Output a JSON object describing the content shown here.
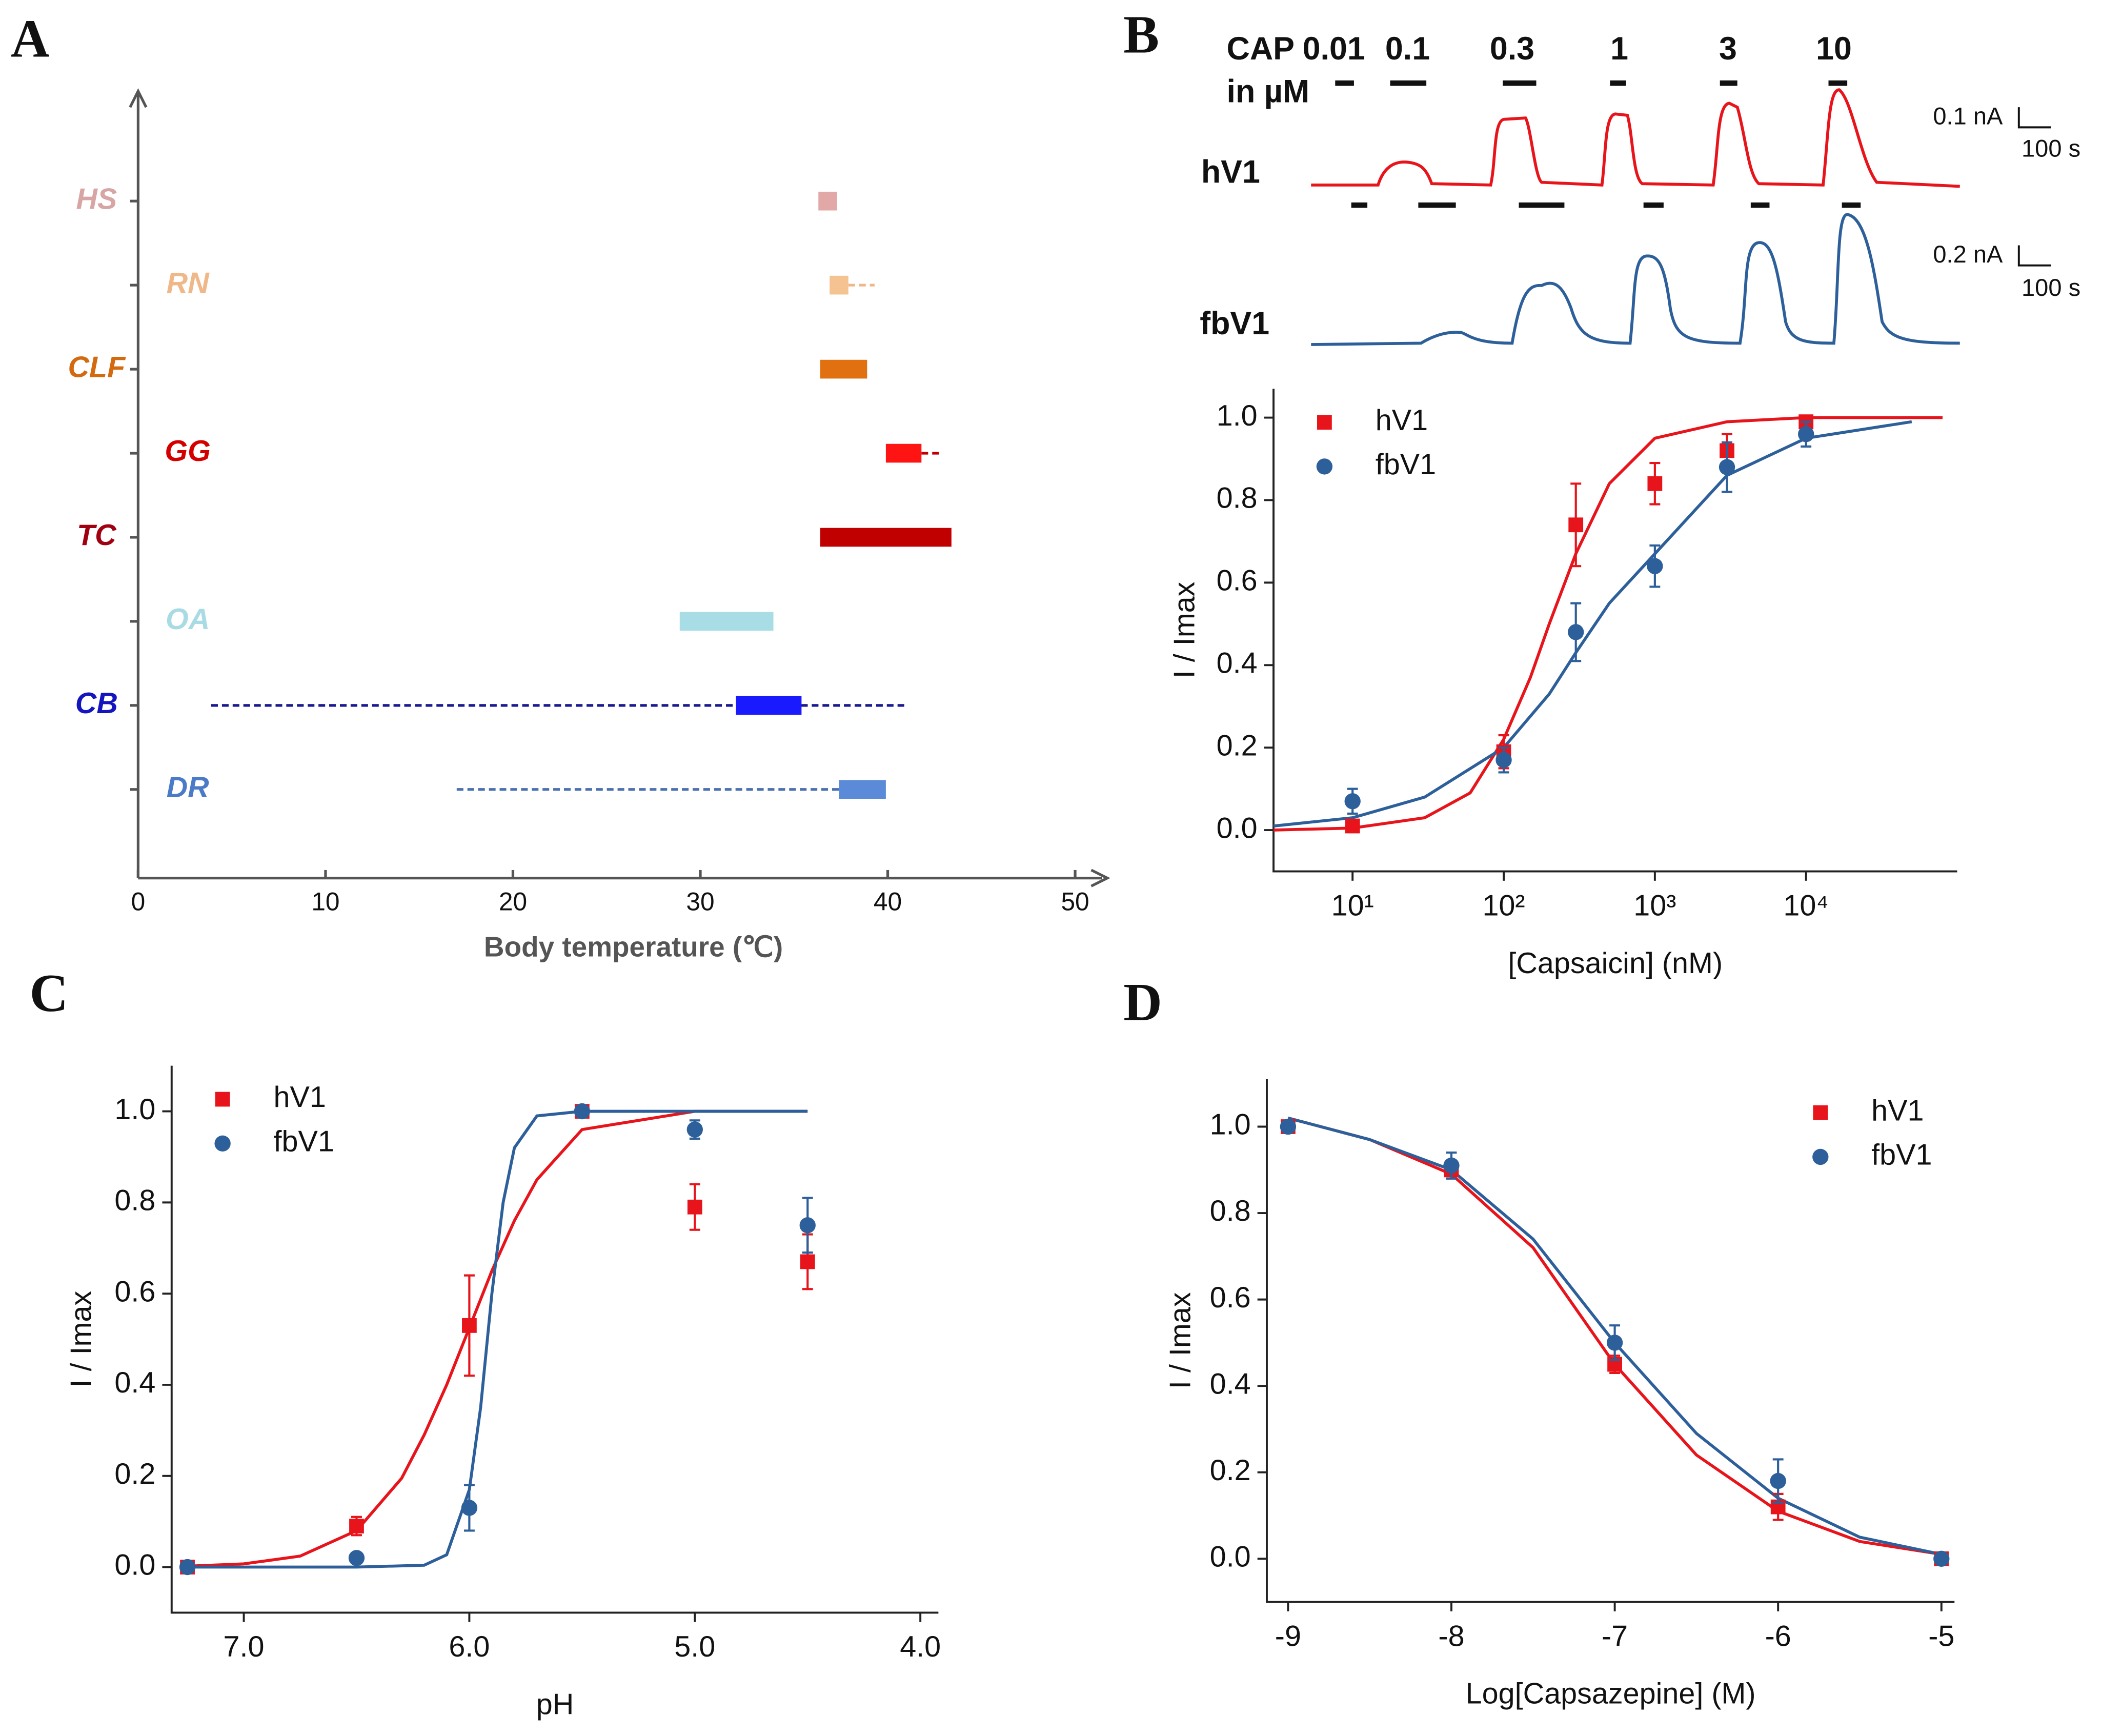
{
  "chart_data": [
    {
      "type": "range",
      "panel": "A",
      "x_label": "Body temperature (℃)",
      "categories": [
        "HS",
        "RN",
        "CLF",
        "GG",
        "TC",
        "OA",
        "CB",
        "DR"
      ],
      "low": [
        36.3,
        36.9,
        36.4,
        39.9,
        36.4,
        28.9,
        31.9,
        37.4
      ],
      "high": [
        37.3,
        37.9,
        38.9,
        41.8,
        43.4,
        33.9,
        35.4,
        39.9
      ],
      "dash_low": [
        null,
        37.9,
        null,
        41.8,
        null,
        null,
        3.9,
        17.0
      ],
      "dash_high": [
        null,
        39.3,
        null,
        42.9,
        null,
        null,
        40.9,
        37.4
      ],
      "label_colors": [
        "#d8a5a5",
        "#f0b888",
        "#d46a10",
        "#d40000",
        "#a00010",
        "#a8dbe4",
        "#1515c0",
        "#4a7ac8"
      ],
      "colors": [
        "#e2a8a8",
        "#f5c292",
        "#e07010",
        "#ff1414",
        "#c00000",
        "#a8dde6",
        "#1a1aff",
        "#5a8ad8"
      ],
      "dash_colors": [
        null,
        "#f0b888",
        null,
        "#c00000",
        null,
        null,
        "#1a1a90",
        "#4a70b0"
      ],
      "xlim": [
        0,
        50
      ],
      "xticks": [
        0,
        10,
        20,
        30,
        40,
        50
      ]
    },
    {
      "type": "scatter",
      "panel": "B",
      "x_label": "[Capsaicin] (nM)",
      "y_label": "I / Imax",
      "log_x": true,
      "legend": "upper left",
      "x": [
        10,
        100,
        300,
        1000,
        3000,
        10000
      ],
      "series": [
        {
          "name": "hV1",
          "color": "#e8141b",
          "marker": "square",
          "values": [
            0.01,
            0.19,
            0.74,
            0.84,
            0.92,
            0.99
          ],
          "errors": [
            0.01,
            0.04,
            0.1,
            0.05,
            0.04,
            0.01
          ],
          "fit": {
            "x": [
              3,
              10,
              30,
              60,
              100,
              150,
              200,
              300,
              500,
              1000,
              3000,
              10000,
              80000
            ],
            "values": [
              0.0,
              0.005,
              0.03,
              0.09,
              0.22,
              0.37,
              0.5,
              0.67,
              0.84,
              0.95,
              0.99,
              1.0,
              1.0
            ]
          }
        },
        {
          "name": "fbV1",
          "color": "#2d5f9a",
          "marker": "circle",
          "values": [
            0.07,
            0.17,
            0.48,
            0.64,
            0.88,
            0.96
          ],
          "errors": [
            0.03,
            0.03,
            0.07,
            0.05,
            0.06,
            0.03
          ],
          "fit": {
            "x": [
              3,
              10,
              30,
              100,
              200,
              300,
              500,
              1000,
              3000,
              10000,
              50000
            ],
            "values": [
              0.01,
              0.03,
              0.08,
              0.2,
              0.33,
              0.43,
              0.55,
              0.67,
              0.86,
              0.95,
              0.99
            ]
          }
        }
      ],
      "xlim": [
        3,
        100000
      ],
      "xticks": [
        {
          "value": 10,
          "label": "10¹"
        },
        {
          "value": 100,
          "label": "10²"
        },
        {
          "value": 1000,
          "label": "10³"
        },
        {
          "value": 10000,
          "label": "10⁴"
        }
      ],
      "ylim": [
        -0.1,
        1.07
      ],
      "yticks": [
        {
          "value": 0,
          "label": "0.0"
        },
        {
          "value": 0.2,
          "label": "0.2"
        },
        {
          "value": 0.4,
          "label": "0.4"
        },
        {
          "value": 0.6,
          "label": "0.6"
        },
        {
          "value": 0.8,
          "label": "0.8"
        },
        {
          "value": 1,
          "label": "1.0"
        }
      ]
    },
    {
      "type": "scatter",
      "panel": "C",
      "x_label": "pH",
      "y_label": "I / Imax",
      "legend": "upper left",
      "x": [
        7.25,
        6.5,
        6.0,
        5.5,
        5.0,
        4.5
      ],
      "series": [
        {
          "name": "hV1",
          "color": "#e8141b",
          "marker": "square",
          "values": [
            0.0,
            0.09,
            0.53,
            1.0,
            0.79,
            0.67
          ],
          "errors": [
            0.01,
            0.02,
            0.11,
            0.01,
            0.05,
            0.06
          ],
          "fit": {
            "x": [
              7.25,
              7.0,
              6.75,
              6.5,
              6.3,
              6.2,
              6.1,
              6.0,
              5.9,
              5.8,
              5.7,
              5.5,
              5.0,
              4.5
            ],
            "values": [
              0.002,
              0.007,
              0.024,
              0.08,
              0.195,
              0.29,
              0.4,
              0.525,
              0.65,
              0.76,
              0.85,
              0.96,
              1.0,
              1.0
            ]
          }
        },
        {
          "name": "fbV1",
          "color": "#2d5f9a",
          "marker": "circle",
          "values": [
            0.0,
            0.02,
            0.13,
            1.0,
            0.96,
            0.75
          ],
          "errors": [
            0.005,
            0.005,
            0.05,
            0.01,
            0.02,
            0.06
          ],
          "fit": {
            "x": [
              7.25,
              6.5,
              6.2,
              6.1,
              6.0,
              5.95,
              5.9,
              5.85,
              5.8,
              5.7,
              5.5,
              5.0,
              4.5
            ],
            "values": [
              0.0,
              0.0,
              0.004,
              0.027,
              0.17,
              0.35,
              0.6,
              0.8,
              0.92,
              0.99,
              1.0,
              1.0,
              1.0
            ]
          }
        }
      ],
      "xlim": [
        7.32,
        3.92
      ],
      "xticks": [
        {
          "value": 7,
          "label": "7.0"
        },
        {
          "value": 6,
          "label": "6.0"
        },
        {
          "value": 5,
          "label": "5.0"
        },
        {
          "value": 4,
          "label": "4.0"
        }
      ],
      "ylim": [
        -0.1,
        1.1
      ],
      "yticks": [
        {
          "value": 0,
          "label": "0.0"
        },
        {
          "value": 0.2,
          "label": "0.2"
        },
        {
          "value": 0.4,
          "label": "0.4"
        },
        {
          "value": 0.6,
          "label": "0.6"
        },
        {
          "value": 0.8,
          "label": "0.8"
        },
        {
          "value": 1,
          "label": "1.0"
        }
      ]
    },
    {
      "type": "scatter",
      "panel": "D",
      "x_label": "Log[Capsazepine] (M)",
      "y_label": "I / Imax",
      "legend": "upper right",
      "x": [
        -9,
        -8,
        -7,
        -6,
        -5
      ],
      "series": [
        {
          "name": "hV1",
          "color": "#e8141b",
          "marker": "square",
          "values": [
            1.0,
            0.9,
            0.45,
            0.12,
            0.0
          ],
          "errors": [
            0.01,
            0.02,
            0.02,
            0.03,
            0.01
          ],
          "fit": {
            "x": [
              -9,
              -8.5,
              -8,
              -7.5,
              -7,
              -6.5,
              -6,
              -5.5,
              -5
            ],
            "values": [
              1.02,
              0.97,
              0.89,
              0.72,
              0.45,
              0.24,
              0.11,
              0.04,
              0.01
            ]
          }
        },
        {
          "name": "fbV1",
          "color": "#2d5f9a",
          "marker": "circle",
          "values": [
            1.0,
            0.91,
            0.5,
            0.18,
            0.0
          ],
          "errors": [
            0.01,
            0.03,
            0.04,
            0.05,
            0.01
          ],
          "fit": {
            "x": [
              -9,
              -8.5,
              -8,
              -7.5,
              -7,
              -6.5,
              -6,
              -5.5,
              -5
            ],
            "values": [
              1.02,
              0.97,
              0.9,
              0.74,
              0.5,
              0.29,
              0.14,
              0.05,
              0.01
            ]
          }
        }
      ],
      "xlim": [
        -9.13,
        -4.92
      ],
      "xticks": [
        -9,
        -8,
        -7,
        -6,
        -5
      ],
      "ylim": [
        -0.1,
        1.11
      ],
      "yticks": [
        {
          "value": 0,
          "label": "0.0"
        },
        {
          "value": 0.2,
          "label": "0.2"
        },
        {
          "value": 0.4,
          "label": "0.4"
        },
        {
          "value": 0.6,
          "label": "0.6"
        },
        {
          "value": 0.8,
          "label": "0.8"
        },
        {
          "value": 1,
          "label": "1.0"
        }
      ]
    }
  ],
  "traces": {
    "cap_label": "CAP",
    "unit_label": "in µM",
    "concentrations": [
      "0.01",
      "0.1",
      "0.3",
      "1",
      "3",
      "10"
    ],
    "rows": [
      {
        "name": "hV1",
        "scale_current": "0.1 nA",
        "scale_time": "100 s"
      },
      {
        "name": "fbV1",
        "scale_current": "0.2 nA",
        "scale_time": "100 s"
      }
    ]
  }
}
